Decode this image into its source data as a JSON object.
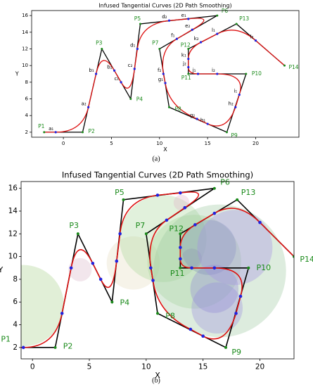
{
  "chart_data": [
    {
      "type": "line",
      "title": "Infused Tangential Curves (2D Path Smoothing)",
      "x_label": "X",
      "y_label": "Y",
      "caption": "(a)",
      "xlim": [
        -3.3,
        24.5
      ],
      "ylim": [
        1.4,
        16.6
      ],
      "xticks": [
        0,
        5,
        10,
        15,
        20
      ],
      "yticks": [
        2,
        4,
        6,
        8,
        10,
        12,
        14,
        16
      ],
      "control_points": {
        "labels": [
          "P1",
          "P2",
          "P3",
          "P4",
          "P5",
          "P6",
          "P7",
          "P8",
          "P9",
          "P10",
          "P11",
          "P12",
          "P13",
          "P14"
        ],
        "x": [
          -2,
          2,
          4,
          7,
          8,
          16,
          10,
          11,
          17,
          19,
          13,
          13,
          18,
          23
        ],
        "y": [
          2,
          2,
          12,
          6,
          15,
          16,
          12,
          5,
          2,
          9,
          9,
          12,
          15,
          10
        ],
        "color": "#000000",
        "label_color": "#1a8a1a"
      },
      "tangent_points": {
        "labels": [
          "a₁",
          "a₂",
          "b₁",
          "b₂",
          "c₁",
          "c₂",
          "d₁",
          "d₂",
          "e₁",
          "e₂",
          "f₁",
          "f₂",
          "g₁",
          "g₂",
          "h₁",
          "h₂",
          "i₁",
          "i₂",
          "j₁",
          "j₂",
          "k₁",
          "k₂",
          "l₁",
          "l₂"
        ],
        "x": [
          -0.8,
          2.6,
          3.4,
          5.3,
          6,
          7.4,
          7.7,
          11,
          13,
          13.4,
          11.8,
          10.4,
          10.6,
          13.9,
          15,
          17.9,
          18.3,
          16,
          14,
          13,
          13,
          14.3,
          16,
          20
        ],
        "y": [
          2,
          5,
          9,
          9.4,
          8,
          9.6,
          12,
          15.4,
          15.6,
          14.3,
          13.2,
          9,
          7.9,
          3.6,
          3,
          5,
          6.5,
          9,
          9,
          9.8,
          10.8,
          12.8,
          13.8,
          13
        ],
        "color": "#2222dd"
      },
      "curve_color": "#dd1111",
      "circles": false
    },
    {
      "type": "line",
      "title": "Infused Tangential Curves (2D Path Smoothing)",
      "x_label": "X",
      "y_label": "Y",
      "caption": "(b)",
      "xlim": [
        -1,
        23
      ],
      "ylim": [
        1,
        16.6
      ],
      "xticks": [
        0,
        5,
        10,
        15,
        20
      ],
      "yticks": [
        2,
        4,
        6,
        8,
        10,
        12,
        14,
        16
      ],
      "control_points": {
        "labels": [
          "P1",
          "P2",
          "P3",
          "P4",
          "P5",
          "P6",
          "P7",
          "P8",
          "P9",
          "P10",
          "P11",
          "P12",
          "P13",
          "P14"
        ],
        "x": [
          -2,
          2,
          4,
          7,
          8,
          16,
          10,
          11,
          17,
          19,
          13,
          13,
          18,
          23
        ],
        "y": [
          2,
          2,
          12,
          6,
          15,
          16,
          12,
          5,
          2,
          9,
          9,
          12,
          15,
          10
        ],
        "color": "#000000",
        "label_color": "#1a8a1a"
      },
      "tangent_points": {
        "x": [
          -0.8,
          2.6,
          3.4,
          5.3,
          6,
          7.4,
          7.7,
          11,
          13,
          13.4,
          11.8,
          10.4,
          10.6,
          13.9,
          15,
          17.9,
          18.3,
          16,
          14,
          13,
          13,
          14.3,
          16,
          20
        ],
        "y": [
          2,
          5,
          9,
          9.4,
          8,
          9.6,
          12,
          15.4,
          15.6,
          14.3,
          13.2,
          9,
          7.9,
          3.6,
          3,
          5,
          6.5,
          9,
          9,
          9.8,
          10.8,
          12.8,
          13.8,
          13
        ],
        "color": "#2222dd"
      },
      "curve_color": "#dd1111",
      "circles": true
    }
  ]
}
